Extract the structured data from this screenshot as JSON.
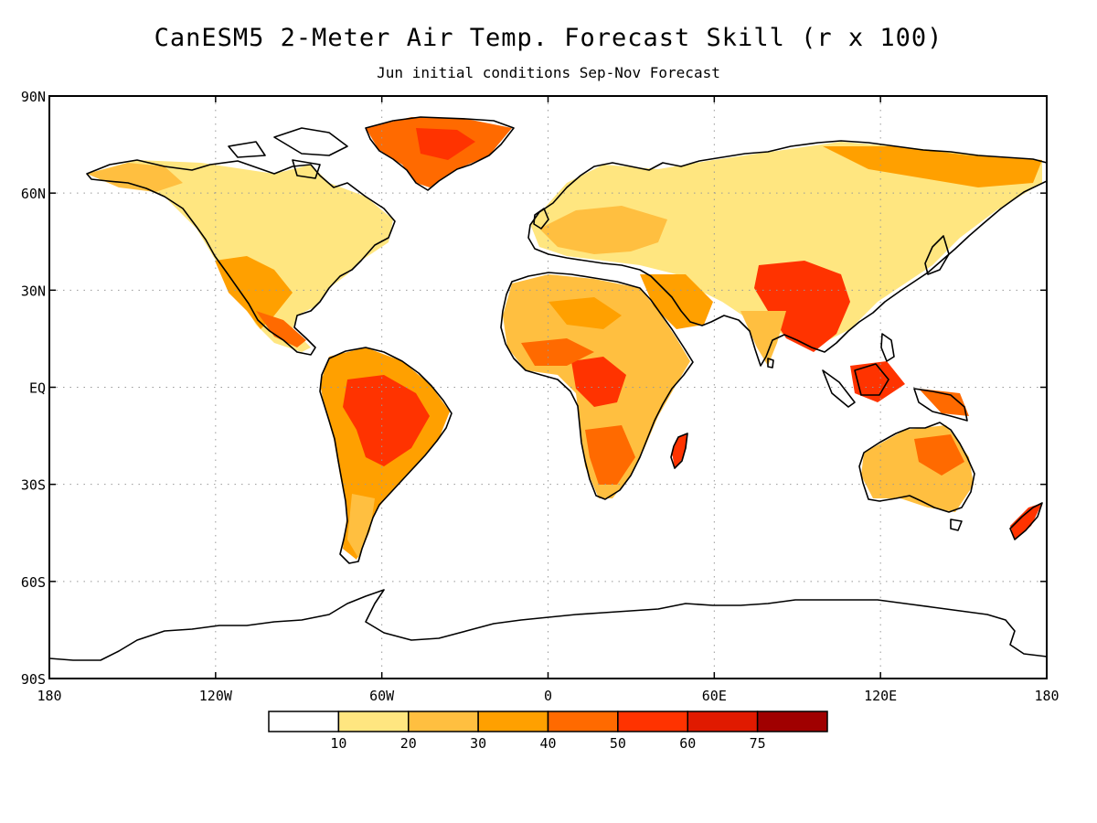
{
  "header": {
    "title": "CanESM5 2-Meter Air Temp. Forecast Skill (r x 100)",
    "subtitle": "Jun initial conditions  Sep-Nov Forecast"
  },
  "map": {
    "lat_labels": [
      "90N",
      "60N",
      "30N",
      "EQ",
      "30S",
      "60S",
      "90S"
    ],
    "lon_labels": [
      "180",
      "120W",
      "60W",
      "0",
      "60E",
      "120E",
      "180"
    ],
    "lat_values": [
      90,
      60,
      30,
      0,
      -30,
      -60,
      -90
    ],
    "lon_values": [
      -180,
      -120,
      -60,
      0,
      60,
      120,
      180
    ],
    "extent": {
      "lon": [
        -180,
        180
      ],
      "lat": [
        -90,
        90
      ]
    },
    "gridlines": true,
    "coastline_color": "#000000"
  },
  "colorbar": {
    "labels": [
      "10",
      "20",
      "30",
      "40",
      "50",
      "60",
      "75"
    ],
    "colors": [
      "#ffffff",
      "#ffe680",
      "#ffbf40",
      "#ffa000",
      "#ff6a00",
      "#ff3300",
      "#e01a00",
      "#a00000"
    ]
  }
}
